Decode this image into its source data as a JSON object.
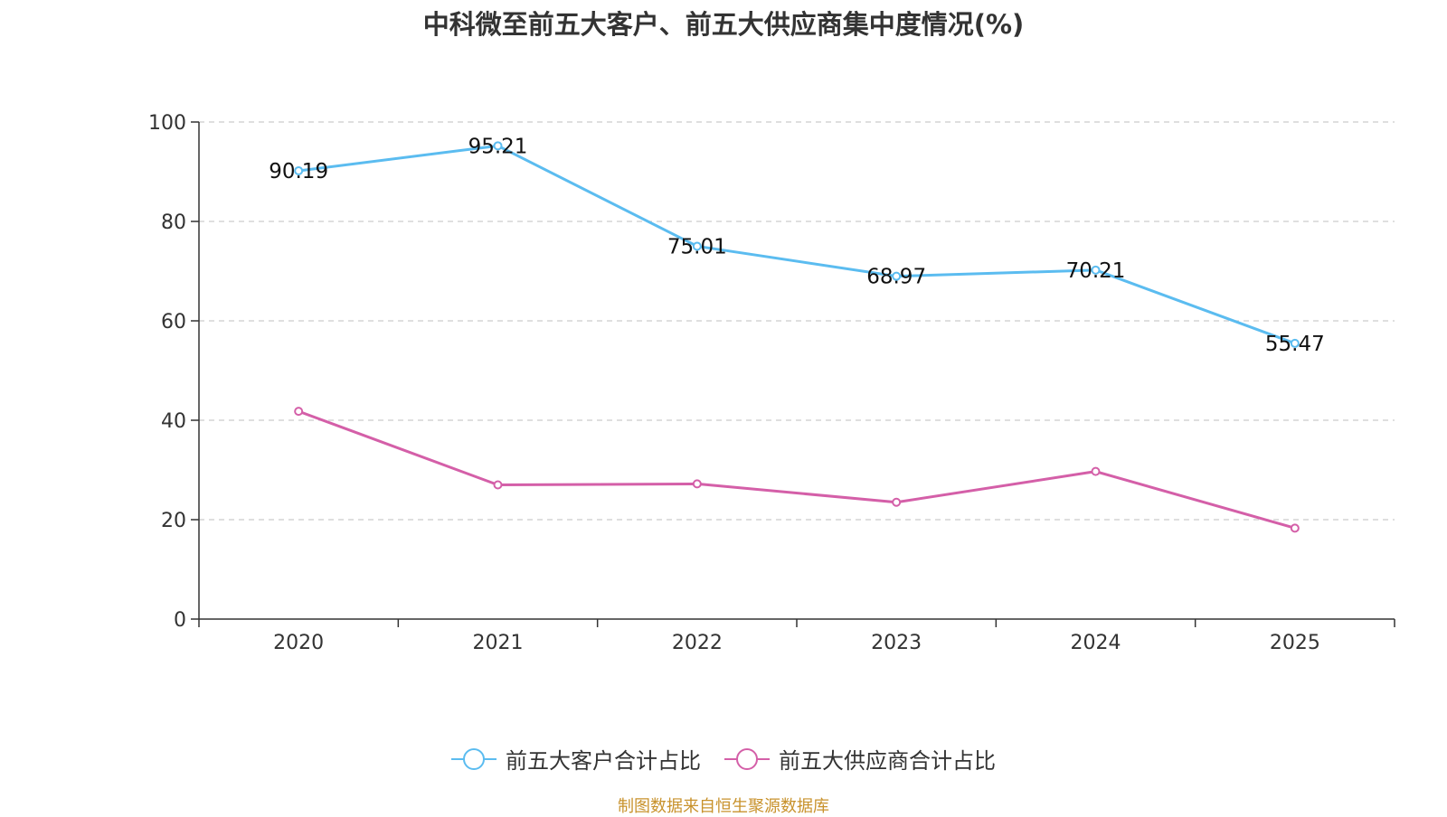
{
  "chart_data": {
    "type": "line",
    "title": "中科微至前五大客户、前五大供应商集中度情况(%)",
    "categories": [
      "2020",
      "2021",
      "2022",
      "2023",
      "2024",
      "2025"
    ],
    "ylim": [
      0,
      100
    ],
    "yticks": [
      0,
      20,
      40,
      60,
      80,
      100
    ],
    "grid": true,
    "legend_position": "bottom",
    "series": [
      {
        "name": "前五大客户合计占比",
        "color": "#5bbcf0",
        "values": [
          90.19,
          95.21,
          75.01,
          68.97,
          70.21,
          55.47
        ],
        "labels": [
          "90.19",
          "95.21",
          "75.01",
          "68.97",
          "70.21",
          "55.47"
        ]
      },
      {
        "name": "前五大供应商合计占比",
        "color": "#d45fa8",
        "values": [
          41.8,
          27.0,
          27.2,
          23.5,
          29.7,
          18.3
        ],
        "labels": []
      }
    ]
  },
  "source_note": "制图数据来自恒生聚源数据库"
}
